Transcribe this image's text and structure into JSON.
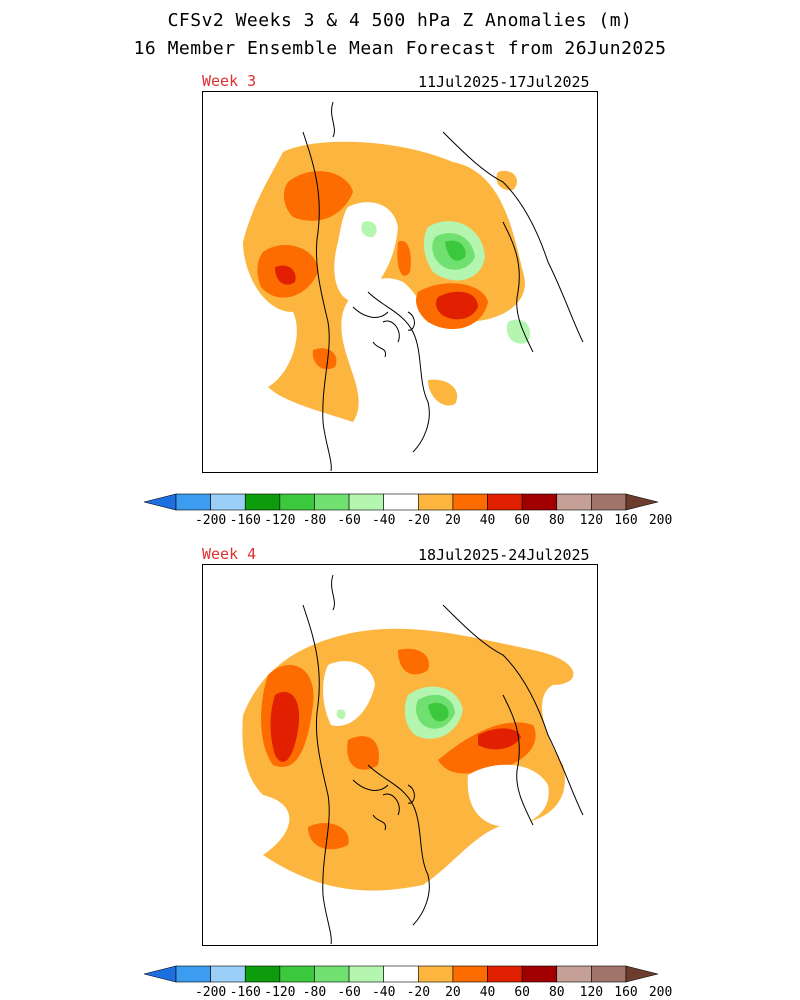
{
  "title": "CFSv2 Weeks 3 & 4 500 hPa Z Anomalies (m)",
  "subtitle": "16 Member Ensemble Mean Forecast from 26Jun2025",
  "panels": [
    {
      "label": "Week 3",
      "dates": "11Jul2025-17Jul2025"
    },
    {
      "label": "Week 4",
      "dates": "18Jul2025-24Jul2025"
    }
  ],
  "colorbar": {
    "levels": [
      "-200",
      "-160",
      "-120",
      "-80",
      "-60",
      "-40",
      "-20",
      "20",
      "40",
      "60",
      "80",
      "120",
      "160",
      "200"
    ],
    "colors": [
      "#1e6fe0",
      "#3c9cf0",
      "#9ccff8",
      "#0c9c0c",
      "#3cc83c",
      "#70e070",
      "#b4f5b0",
      "#ffffff",
      "#fcb640",
      "#fc6c00",
      "#e02000",
      "#a00000",
      "#c4a096",
      "#a07468",
      "#6c3c2c"
    ]
  },
  "anomaly_colors": {
    "pos20": "#fcb640",
    "pos40": "#fc6c00",
    "pos60": "#e02000",
    "neg20": "#b4f5b0",
    "neg40": "#70e070",
    "neg60": "#3cc83c"
  }
}
